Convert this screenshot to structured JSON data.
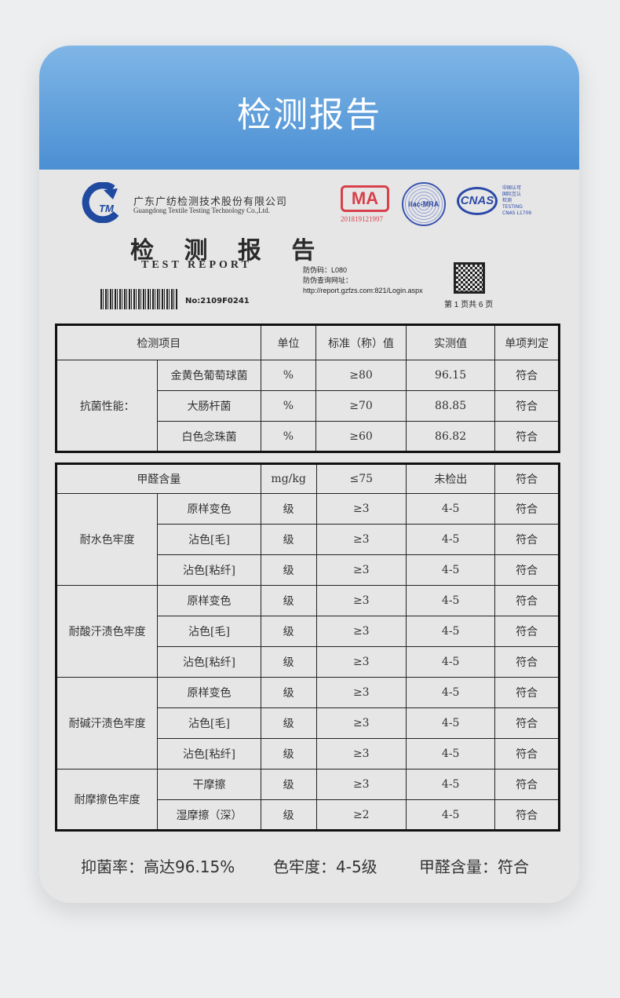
{
  "header": {
    "title": "检测报告"
  },
  "company": {
    "name_cn": "广东广纺检测技术股份有限公司",
    "name_en": "Guangdong Textile Testing Technology Co.,Ltd.",
    "logo_text": "TM"
  },
  "certs": {
    "cma": "MA",
    "cma_number": "201819121997",
    "ilac": "ilac-MRA",
    "cnas": "CNAS",
    "cnas_lines": [
      "中国认可",
      "国际互认",
      "检测",
      "TESTING",
      "CNAS L1709"
    ]
  },
  "report": {
    "title_cn": "检 测 报 告",
    "title_en": "TEST  REPORT",
    "anti_fake_code": "防伪码：L080",
    "query_label": "防伪查询网址：",
    "query_url": "http://report.gzfzs.com:821/Login.aspx",
    "number": "No:2109F0241",
    "page": "第 1 页共 6 页"
  },
  "table1": {
    "headers": [
      "检测项目",
      "单位",
      "标准（称）值",
      "实测值",
      "单项判定"
    ],
    "group": "抗菌性能：",
    "rows": [
      [
        "金黄色葡萄球菌",
        "%",
        "≥80",
        "96.15",
        "符合"
      ],
      [
        "大肠杆菌",
        "%",
        "≥70",
        "88.85",
        "符合"
      ],
      [
        "白色念珠菌",
        "%",
        "≥60",
        "86.82",
        "符合"
      ]
    ]
  },
  "table2": {
    "first_row": [
      "甲醛含量",
      "mg/kg",
      "≤75",
      "未检出",
      "符合"
    ],
    "groups": [
      {
        "name": "耐水色牢度",
        "rows": [
          [
            "原样变色",
            "级",
            "≥3",
            "4-5",
            "符合"
          ],
          [
            "沾色[毛]",
            "级",
            "≥3",
            "4-5",
            "符合"
          ],
          [
            "沾色[粘纤]",
            "级",
            "≥3",
            "4-5",
            "符合"
          ]
        ]
      },
      {
        "name": "耐酸汗渍色牢度",
        "rows": [
          [
            "原样变色",
            "级",
            "≥3",
            "4-5",
            "符合"
          ],
          [
            "沾色[毛]",
            "级",
            "≥3",
            "4-5",
            "符合"
          ],
          [
            "沾色[粘纤]",
            "级",
            "≥3",
            "4-5",
            "符合"
          ]
        ]
      },
      {
        "name": "耐碱汗渍色牢度",
        "rows": [
          [
            "原样变色",
            "级",
            "≥3",
            "4-5",
            "符合"
          ],
          [
            "沾色[毛]",
            "级",
            "≥3",
            "4-5",
            "符合"
          ],
          [
            "沾色[粘纤]",
            "级",
            "≥3",
            "4-5",
            "符合"
          ]
        ]
      },
      {
        "name": "耐摩擦色牢度",
        "rows": [
          [
            "干摩擦",
            "级",
            "≥3",
            "4-5",
            "符合"
          ],
          [
            "湿摩擦（深）",
            "级",
            "≥2",
            "4-5",
            "符合"
          ]
        ]
      }
    ]
  },
  "footer": {
    "items": [
      "抑菌率：高达96.15%",
      "色牢度：4-5级",
      "甲醛含量：符合"
    ]
  }
}
